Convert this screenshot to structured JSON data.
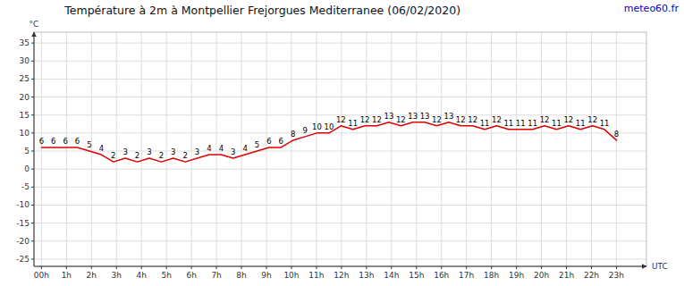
{
  "chart_data": {
    "type": "line",
    "title": "Température à 2m à Montpellier Frejorgues Mediterranee (06/02/2020)",
    "y_label": "°C",
    "x_label": "UTC",
    "annotations": [
      {
        "text": "meteo60.fr",
        "color": "#0000cc"
      }
    ],
    "x": [
      0,
      0.4791666666666667,
      0.9583333333333334,
      1.4375,
      1.9166666666666667,
      2.3958333333333335,
      2.875,
      3.3541666666666665,
      3.8333333333333335,
      4.3125,
      4.791666666666667,
      5.270833333333333,
      5.75,
      6.229166666666667,
      6.708333333333333,
      7.1875,
      7.666666666666667,
      8.145833333333334,
      8.625,
      9.104166666666666,
      9.583333333333334,
      10.0625,
      10.541666666666666,
      11.020833333333334,
      11.5,
      11.979166666666666,
      12.458333333333334,
      12.9375,
      13.416666666666666,
      13.895833333333334,
      14.375,
      14.854166666666666,
      15.333333333333334,
      15.8125,
      16.291666666666668,
      16.770833333333332,
      17.25,
      17.729166666666668,
      18.208333333333332,
      18.6875,
      19.166666666666668,
      19.645833333333332,
      20.125,
      20.604166666666668,
      21.083333333333332,
      21.5625,
      22.041666666666668,
      22.520833333333332,
      23
    ],
    "values": [
      6,
      6,
      6,
      6,
      5,
      4,
      2,
      3,
      2,
      3,
      2,
      3,
      2,
      3,
      4,
      4,
      3,
      4,
      5,
      6,
      6,
      8,
      9,
      10,
      10,
      12,
      11,
      12,
      12,
      13,
      12,
      13,
      13,
      12,
      13,
      12,
      12,
      11,
      12,
      11,
      11,
      11,
      12,
      11,
      12,
      11,
      12,
      11,
      8
    ],
    "color": "#dd0000",
    "data_labels": true,
    "grid": true,
    "xlim": [
      -0.3,
      24.2
    ],
    "xticks": [
      {
        "value": 0,
        "label": "00h"
      },
      {
        "value": 1,
        "label": "1h"
      },
      {
        "value": 2,
        "label": "2h"
      },
      {
        "value": 3,
        "label": "3h"
      },
      {
        "value": 4,
        "label": "4h"
      },
      {
        "value": 5,
        "label": "5h"
      },
      {
        "value": 6,
        "label": "6h"
      },
      {
        "value": 7,
        "label": "7h"
      },
      {
        "value": 8,
        "label": "8h"
      },
      {
        "value": 9,
        "label": "9h"
      },
      {
        "value": 10,
        "label": "10h"
      },
      {
        "value": 11,
        "label": "11h"
      },
      {
        "value": 12,
        "label": "12h"
      },
      {
        "value": 13,
        "label": "13h"
      },
      {
        "value": 14,
        "label": "14h"
      },
      {
        "value": 15,
        "label": "15h"
      },
      {
        "value": 16,
        "label": "16h"
      },
      {
        "value": 17,
        "label": "17h"
      },
      {
        "value": 18,
        "label": "18h"
      },
      {
        "value": 19,
        "label": "19h"
      },
      {
        "value": 20,
        "label": "20h"
      },
      {
        "value": 21,
        "label": "21h"
      },
      {
        "value": 22,
        "label": "22h"
      },
      {
        "value": 23,
        "label": "23h"
      }
    ],
    "ylim": [
      -27,
      38
    ],
    "yticks": [
      -25,
      -20,
      -15,
      -10,
      -5,
      0,
      5,
      10,
      15,
      20,
      25,
      30,
      35
    ]
  }
}
